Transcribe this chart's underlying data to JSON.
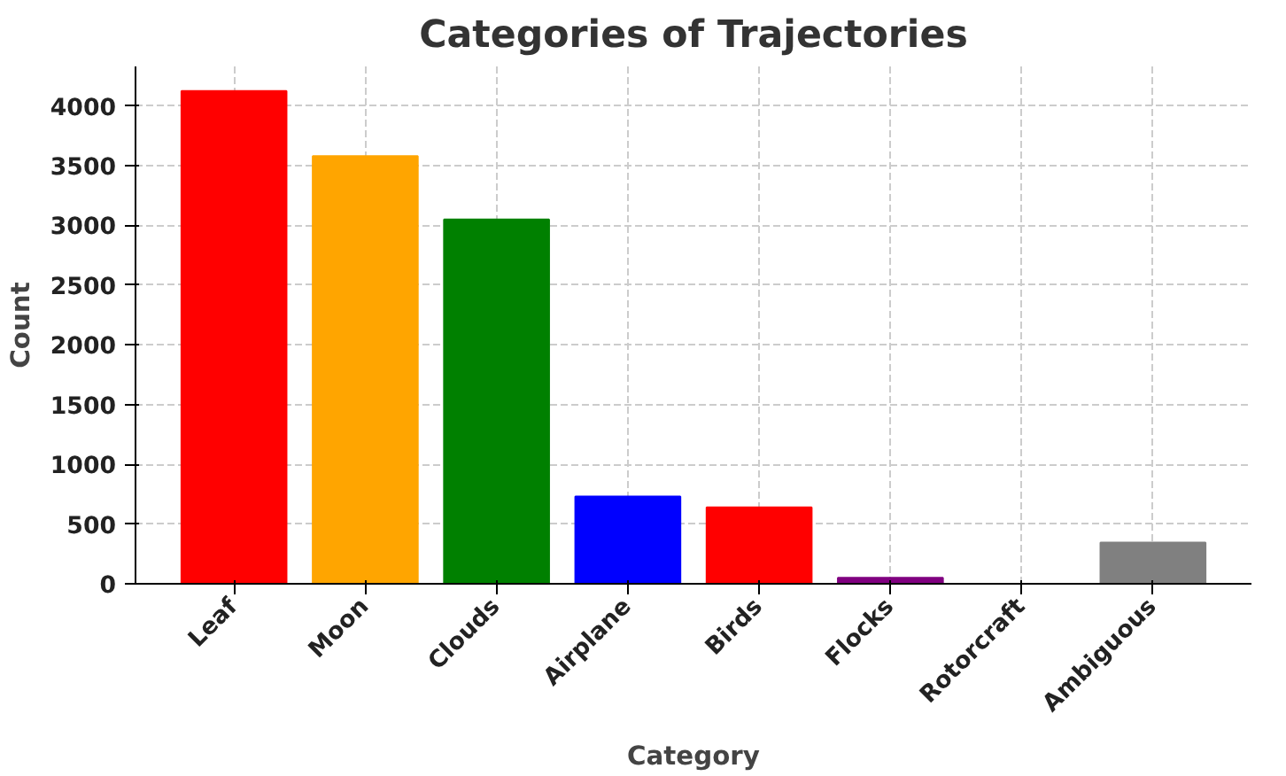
{
  "chart_data": {
    "type": "bar",
    "title": "Categories of Trajectories",
    "xlabel": "Category",
    "ylabel": "Count",
    "categories": [
      "Leaf",
      "Moon",
      "Clouds",
      "Airplane",
      "Birds",
      "Flocks",
      "Rotorcraft",
      "Ambiguous"
    ],
    "values": [
      4125,
      3580,
      3050,
      730,
      640,
      50,
      0,
      345
    ],
    "colors": [
      "#ff0000",
      "#ffa500",
      "#008000",
      "#0000ff",
      "#ff0000",
      "#800080",
      "#a52a2a",
      "#808080"
    ],
    "ylim": [
      0,
      4330
    ],
    "yticks": [
      0,
      500,
      1000,
      1500,
      2000,
      2500,
      3000,
      3500,
      4000
    ],
    "grid": true
  }
}
